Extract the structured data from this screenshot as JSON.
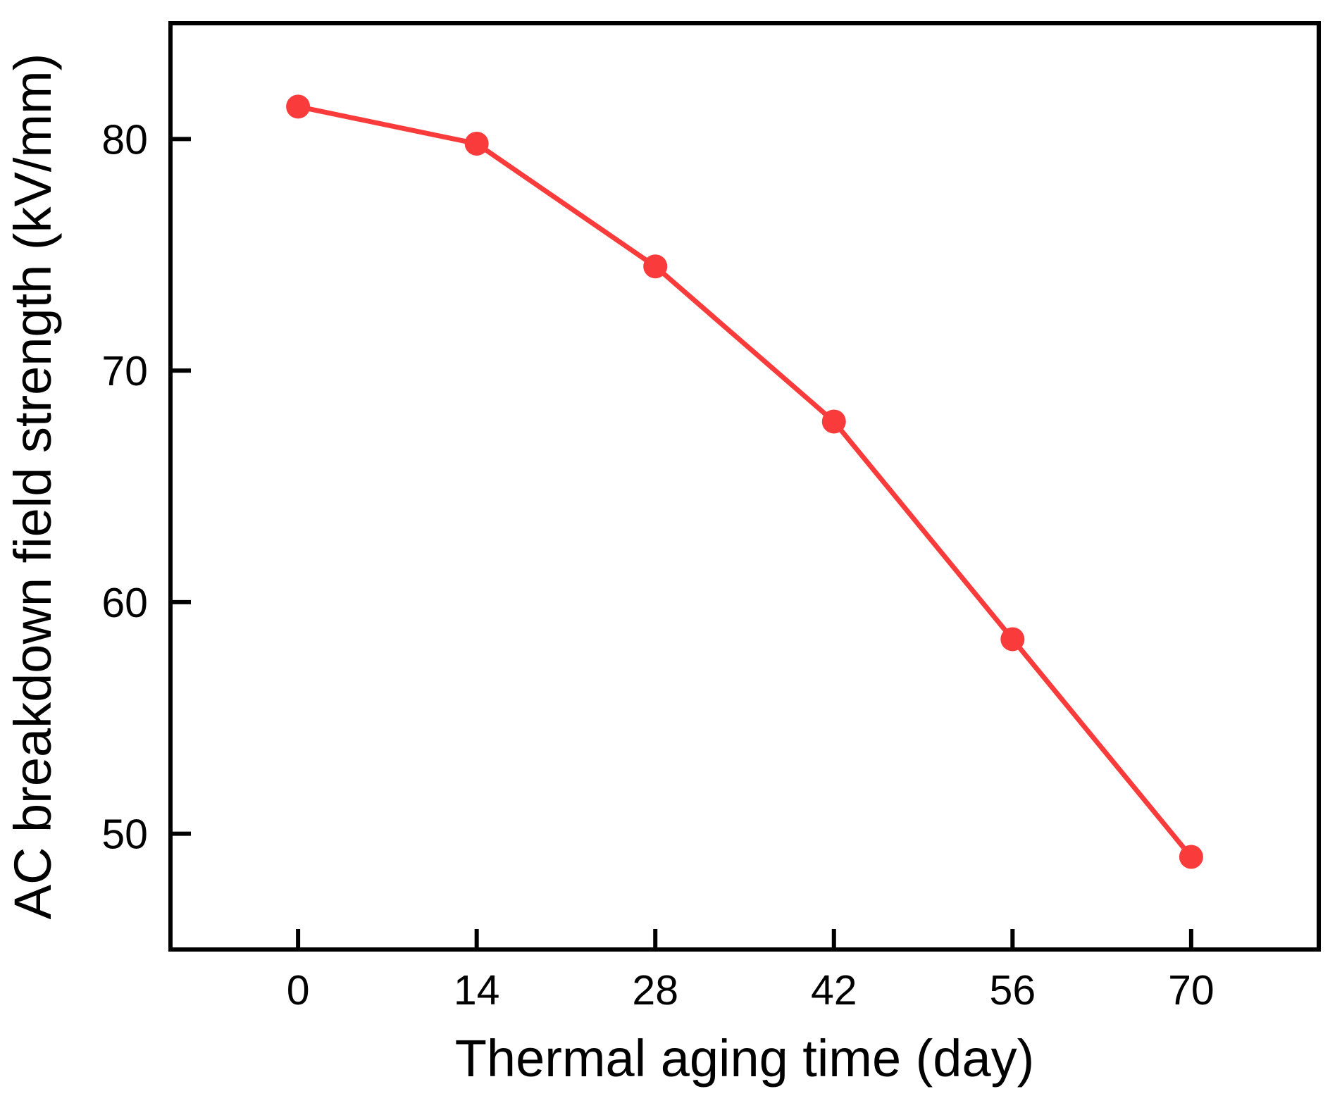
{
  "chart_data": {
    "type": "line",
    "title": "",
    "xlabel": "Thermal aging time (day)",
    "ylabel": "AC breakdown field strength (kV/mm)",
    "series": [
      {
        "name": "AC breakdown field strength",
        "x": [
          0,
          14,
          28,
          42,
          56,
          70
        ],
        "y": [
          81.4,
          79.8,
          74.5,
          67.8,
          58.4,
          49.0
        ]
      }
    ],
    "x_ticks": [
      0,
      14,
      28,
      42,
      56,
      70
    ],
    "y_ticks": [
      50,
      60,
      70,
      80
    ],
    "xlim": [
      -10,
      80
    ],
    "ylim": [
      45,
      85
    ],
    "grid": false,
    "legend_position": "none",
    "line_color": "#fa3b3b",
    "marker": "circle",
    "axis_color": "#000000",
    "background_color": "#ffffff"
  }
}
